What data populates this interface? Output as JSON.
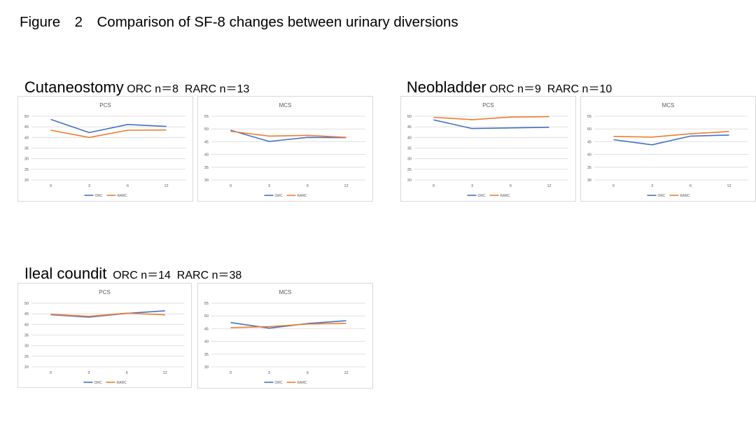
{
  "figure_title": "Figure　2　Comparison of SF-8 changes between urinary diversions",
  "groups": [
    {
      "name": "Cutaneostomy",
      "counts": " ORC n＝8  RARC n＝13"
    },
    {
      "name": "Neobladder",
      "counts": " ORC n＝9  RARC n＝10"
    },
    {
      "name": "Ileal coundit",
      "counts": "  ORC n＝14  RARC n＝38"
    }
  ],
  "colors": {
    "ORC": "#4472c4",
    "RARC": "#ed7d31"
  },
  "chart_data": [
    {
      "type": "line",
      "group": "Cutaneostomy",
      "title": "PCS",
      "categories": [
        "0",
        "3",
        "6",
        "12"
      ],
      "ylim": [
        20,
        50
      ],
      "yticks": [
        20,
        25,
        30,
        35,
        40,
        45,
        50
      ],
      "grid": true,
      "legend_position": "bottom",
      "series": [
        {
          "name": "ORC",
          "values": [
            48.5,
            42.3,
            46.1,
            45.2
          ]
        },
        {
          "name": "RARC",
          "values": [
            43.4,
            40.0,
            43.4,
            43.5
          ]
        }
      ]
    },
    {
      "type": "line",
      "group": "Cutaneostomy",
      "title": "MCS",
      "categories": [
        "0",
        "3",
        "6",
        "12"
      ],
      "ylim": [
        30,
        55
      ],
      "yticks": [
        30,
        35,
        40,
        45,
        50,
        55
      ],
      "grid": true,
      "legend_position": "bottom",
      "series": [
        {
          "name": "ORC",
          "values": [
            49.5,
            45.1,
            46.7,
            46.6
          ]
        },
        {
          "name": "RARC",
          "values": [
            49.1,
            47.2,
            47.5,
            46.7
          ]
        }
      ]
    },
    {
      "type": "line",
      "group": "Neobladder",
      "title": "PCS",
      "categories": [
        "0",
        "3",
        "6",
        "12"
      ],
      "ylim": [
        20,
        50
      ],
      "yticks": [
        20,
        25,
        30,
        35,
        40,
        45,
        50
      ],
      "grid": true,
      "legend_position": "bottom",
      "series": [
        {
          "name": "ORC",
          "values": [
            48.3,
            44.2,
            44.5,
            44.8
          ]
        },
        {
          "name": "RARC",
          "values": [
            49.5,
            48.4,
            49.6,
            49.8
          ]
        }
      ]
    },
    {
      "type": "line",
      "group": "Neobladder",
      "title": "MCS",
      "categories": [
        "0",
        "3",
        "6",
        "12"
      ],
      "ylim": [
        30,
        55
      ],
      "yticks": [
        30,
        35,
        40,
        45,
        50,
        55
      ],
      "grid": true,
      "legend_position": "bottom",
      "series": [
        {
          "name": "ORC",
          "values": [
            45.8,
            43.8,
            47.2,
            47.6
          ]
        },
        {
          "name": "RARC",
          "values": [
            47.1,
            46.8,
            48.1,
            49.0
          ]
        }
      ]
    },
    {
      "type": "line",
      "group": "Ileal coundit",
      "title": "PCS",
      "categories": [
        "0",
        "3",
        "6",
        "12"
      ],
      "ylim": [
        20,
        50
      ],
      "yticks": [
        20,
        25,
        30,
        35,
        40,
        45,
        50
      ],
      "grid": true,
      "legend_position": "bottom",
      "series": [
        {
          "name": "ORC",
          "values": [
            44.6,
            43.4,
            45.2,
            46.4
          ]
        },
        {
          "name": "RARC",
          "values": [
            44.8,
            43.8,
            45.3,
            44.5
          ]
        }
      ]
    },
    {
      "type": "line",
      "group": "Ileal coundit",
      "title": "MCS",
      "categories": [
        "0",
        "3",
        "6",
        "12"
      ],
      "ylim": [
        30,
        55
      ],
      "yticks": [
        30,
        35,
        40,
        45,
        50,
        55
      ],
      "grid": true,
      "legend_position": "bottom",
      "series": [
        {
          "name": "ORC",
          "values": [
            47.4,
            45.2,
            47.0,
            48.1
          ]
        },
        {
          "name": "RARC",
          "values": [
            45.4,
            45.8,
            46.8,
            47.1
          ]
        }
      ]
    }
  ]
}
